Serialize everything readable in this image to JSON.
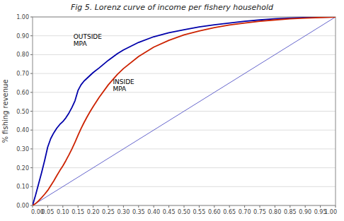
{
  "chart_data": {
    "type": "line",
    "title": "Fig 5. Lorenz curve of income per fishery household",
    "ylabel": "% fishing revenue",
    "grid": "y",
    "xlim": [
      0.0,
      1.0
    ],
    "ylim": [
      0.0,
      1.0
    ],
    "xticks": [
      {
        "value": 0.0,
        "label": "0.00"
      },
      {
        "value": 0.05,
        "label": "0.05"
      },
      {
        "value": 0.1,
        "label": "0.10"
      },
      {
        "value": 0.15,
        "label": "0.15"
      },
      {
        "value": 0.2,
        "label": "0.20"
      },
      {
        "value": 0.25,
        "label": "0.25"
      },
      {
        "value": 0.3,
        "label": "0.30"
      },
      {
        "value": 0.35,
        "label": "0.35"
      },
      {
        "value": 0.4,
        "label": "0.40"
      },
      {
        "value": 0.45,
        "label": "0.45"
      },
      {
        "value": 0.5,
        "label": "0.50"
      },
      {
        "value": 0.55,
        "label": "0.55"
      },
      {
        "value": 0.6,
        "label": "0.60"
      },
      {
        "value": 0.65,
        "label": "0.65"
      },
      {
        "value": 0.7,
        "label": "0.70"
      },
      {
        "value": 0.75,
        "label": "0.75"
      },
      {
        "value": 0.8,
        "label": "0.80"
      },
      {
        "value": 0.85,
        "label": "0.85"
      },
      {
        "value": 0.9,
        "label": "0.90"
      },
      {
        "value": 0.95,
        "label": "0.95"
      },
      {
        "value": 1.0,
        "label": "1.00"
      }
    ],
    "yticks": [
      {
        "value": 0.0,
        "label": "0.00"
      },
      {
        "value": 0.1,
        "label": "0.10"
      },
      {
        "value": 0.2,
        "label": "0.20"
      },
      {
        "value": 0.3,
        "label": "0.30"
      },
      {
        "value": 0.4,
        "label": "0.40"
      },
      {
        "value": 0.5,
        "label": "0.50"
      },
      {
        "value": 0.6,
        "label": "0.60"
      },
      {
        "value": 0.7,
        "label": "0.70"
      },
      {
        "value": 0.8,
        "label": "0.80"
      },
      {
        "value": 0.9,
        "label": "0.90"
      },
      {
        "value": 1.0,
        "label": "1.00"
      }
    ],
    "series": [
      {
        "color": "#6666cc",
        "x": [
          0,
          1
        ],
        "values": [
          0,
          1
        ]
      },
      {
        "color": "#0000aa",
        "x": [
          0.0,
          0.01,
          0.02,
          0.03,
          0.04,
          0.05,
          0.06,
          0.07,
          0.08,
          0.09,
          0.1,
          0.11,
          0.12,
          0.13,
          0.14,
          0.15,
          0.16,
          0.17,
          0.18,
          0.19,
          0.2,
          0.22,
          0.25,
          0.28,
          0.3,
          0.35,
          0.4,
          0.45,
          0.5,
          0.55,
          0.6,
          0.65,
          0.7,
          0.75,
          0.8,
          0.85,
          0.9,
          0.95,
          1.0
        ],
        "values": [
          0.0,
          0.055,
          0.115,
          0.175,
          0.24,
          0.31,
          0.355,
          0.385,
          0.41,
          0.43,
          0.445,
          0.465,
          0.49,
          0.52,
          0.555,
          0.61,
          0.64,
          0.66,
          0.675,
          0.69,
          0.705,
          0.73,
          0.77,
          0.805,
          0.825,
          0.865,
          0.895,
          0.916,
          0.932,
          0.947,
          0.958,
          0.968,
          0.977,
          0.984,
          0.99,
          0.994,
          0.997,
          0.999,
          1.0
        ]
      },
      {
        "color": "#cc2200",
        "x": [
          0.0,
          0.01,
          0.02,
          0.03,
          0.04,
          0.05,
          0.06,
          0.07,
          0.08,
          0.09,
          0.1,
          0.11,
          0.12,
          0.13,
          0.14,
          0.15,
          0.16,
          0.17,
          0.18,
          0.19,
          0.2,
          0.22,
          0.25,
          0.28,
          0.3,
          0.35,
          0.4,
          0.45,
          0.5,
          0.55,
          0.6,
          0.65,
          0.7,
          0.75,
          0.8,
          0.85,
          0.9,
          0.95,
          1.0
        ],
        "values": [
          0.0,
          0.01,
          0.025,
          0.042,
          0.06,
          0.08,
          0.105,
          0.13,
          0.158,
          0.185,
          0.21,
          0.238,
          0.268,
          0.3,
          0.335,
          0.372,
          0.408,
          0.44,
          0.47,
          0.498,
          0.524,
          0.574,
          0.64,
          0.695,
          0.726,
          0.79,
          0.84,
          0.876,
          0.905,
          0.926,
          0.943,
          0.957,
          0.968,
          0.977,
          0.984,
          0.99,
          0.994,
          0.997,
          1.0
        ]
      }
    ],
    "annotations": [
      {
        "text": "OUTSIDE\nMPA",
        "x": 0.135,
        "y": 0.875
      },
      {
        "text": "INSIDE\nMPA",
        "x": 0.265,
        "y": 0.635
      }
    ]
  }
}
